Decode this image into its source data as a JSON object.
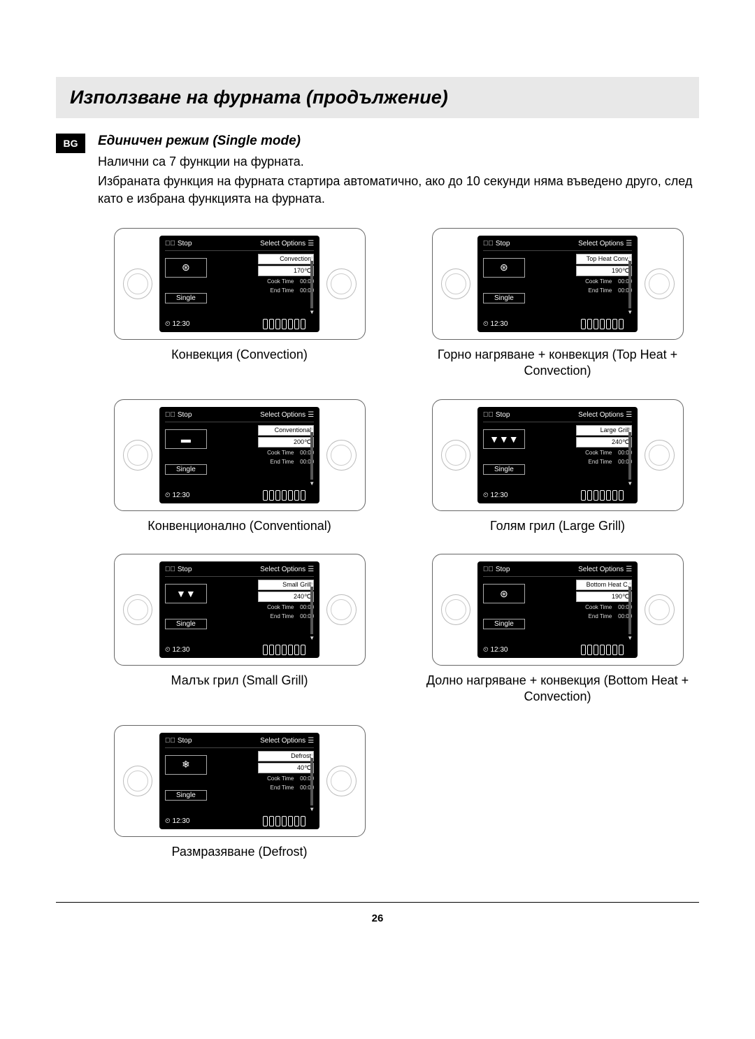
{
  "header": {
    "title": "Използване на фурната (продължение)"
  },
  "badge": "BG",
  "section": {
    "subhead": "Единичен режим (Single mode)",
    "p1": "Налични са 7 функции на фурната.",
    "p2": "Избраната функция на фурната стартира автоматично, ако до 10 секунди няма въведено друго, след като е избрана функцията на фурната."
  },
  "panel_common": {
    "stop": "Stop",
    "select": "Select Options",
    "mode_label": "Single",
    "clock": "12:30",
    "cook_time_label": "Cook Time",
    "cook_time_val": "00:00",
    "end_time_label": "End Time",
    "end_time_val": "00:00"
  },
  "panels": [
    {
      "func": "Convection",
      "temp": "170℃",
      "icon": "⊛",
      "caption": "Конвекция (Convection)"
    },
    {
      "func": "Top Heat Conv.",
      "temp": "190℃",
      "icon": "⊛",
      "caption": "Горно нагряване + конвекция (Top Heat + Convection)"
    },
    {
      "func": "Conventional",
      "temp": "200℃",
      "icon": "▬",
      "caption": "Конвенционално (Conventional)"
    },
    {
      "func": "Large Grill",
      "temp": "240℃",
      "icon": "▼▼▼",
      "caption": "Голям грил (Large Grill)"
    },
    {
      "func": "Small Grill",
      "temp": "240℃",
      "icon": "▼▼",
      "caption": "Малък грил (Small Grill)"
    },
    {
      "func": "Bottom Heat C.",
      "temp": "190℃",
      "icon": "⊛",
      "caption": "Долно нагряване + конвекция (Bottom Heat + Convection)"
    },
    {
      "func": "Defrost",
      "temp": "40℃",
      "icon": "❄",
      "caption": "Размразяване (Defrost)"
    }
  ],
  "page_number": "26"
}
